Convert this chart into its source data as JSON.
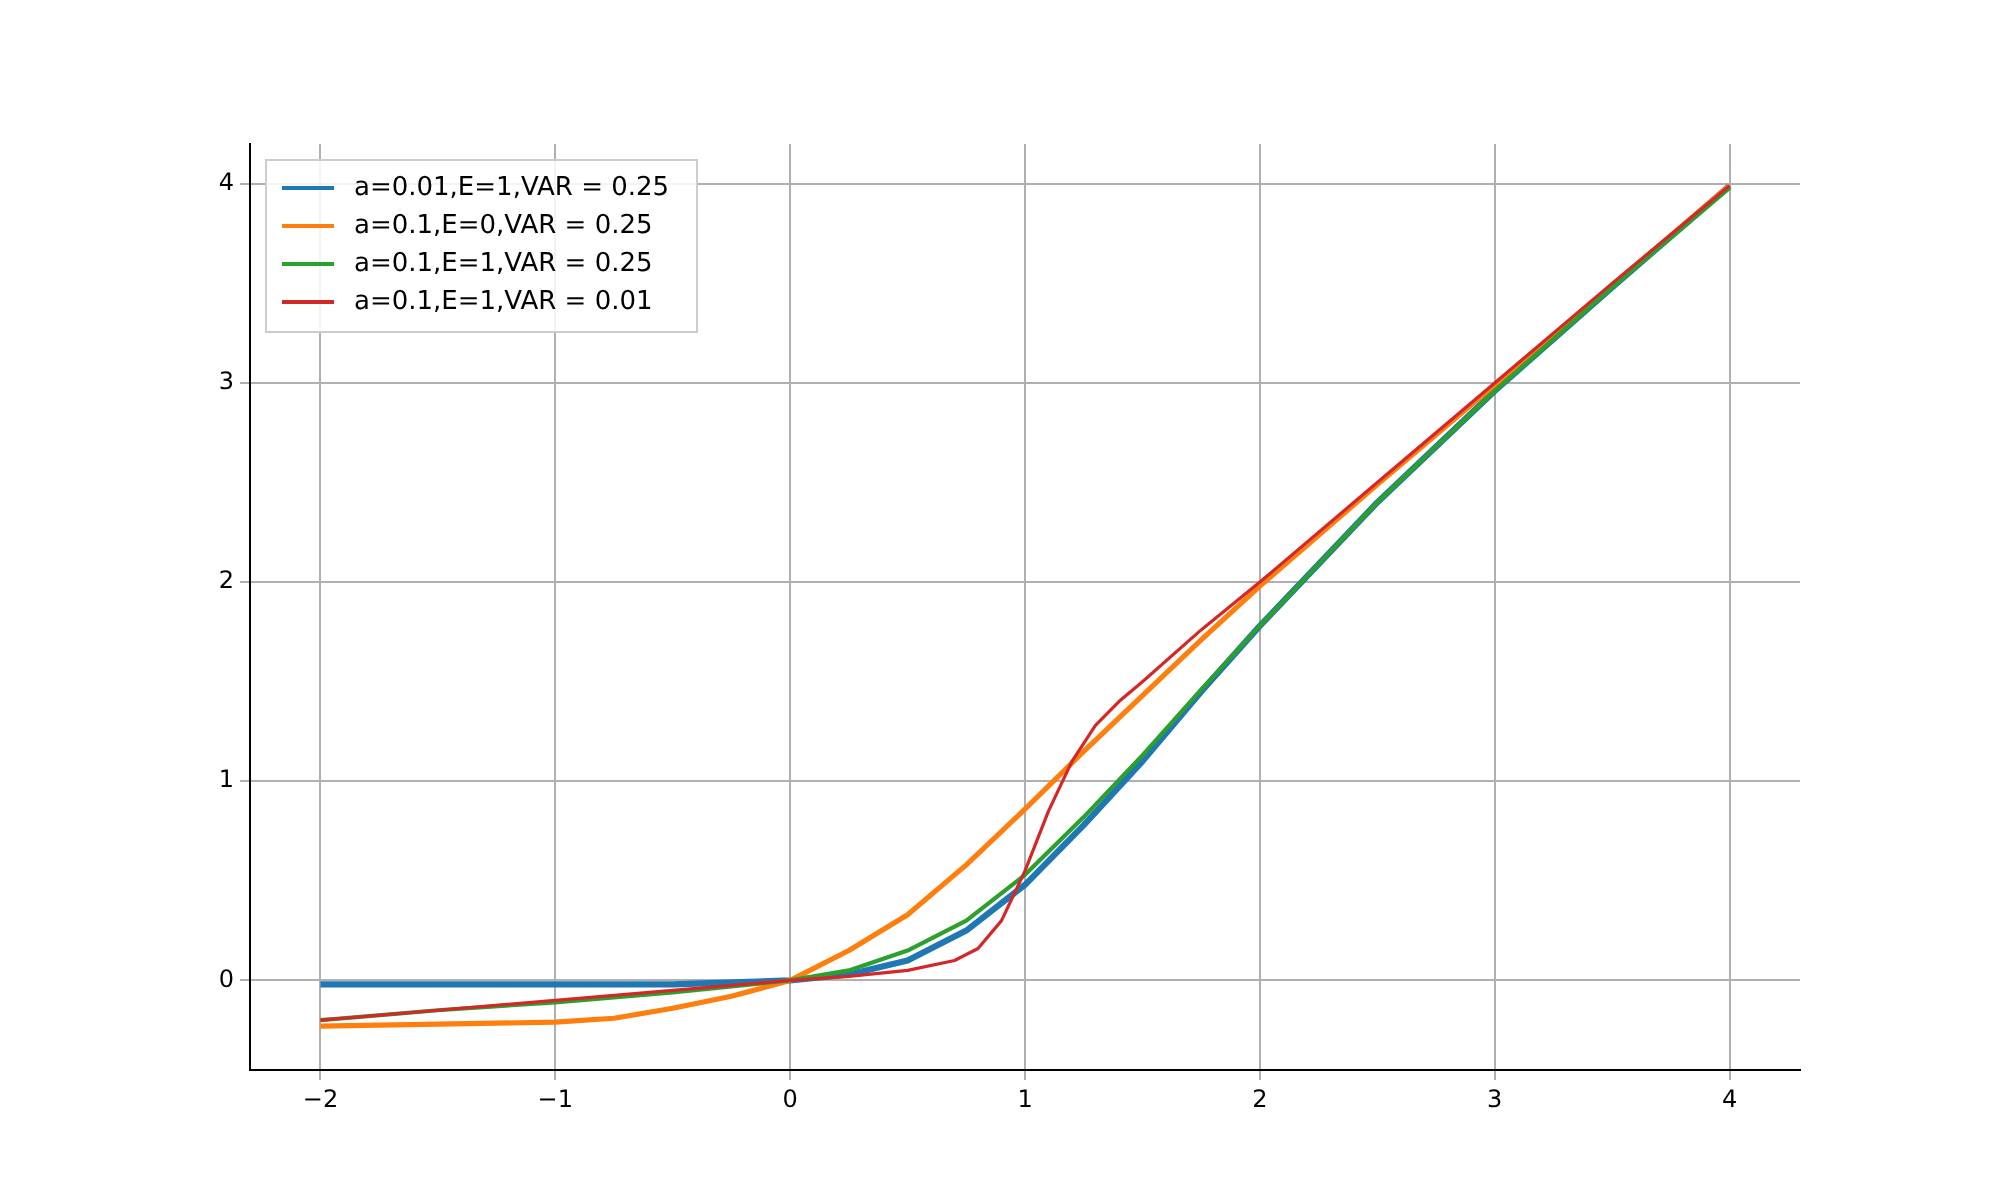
{
  "chart_data": {
    "type": "line",
    "xlim": [
      -2.3,
      4.3
    ],
    "ylim": [
      -0.45,
      4.2
    ],
    "xticks": [
      {
        "value": -2,
        "label": "−2"
      },
      {
        "value": -1,
        "label": "−1"
      },
      0,
      1,
      2,
      3,
      4
    ],
    "yticks": [
      0,
      1,
      2,
      3,
      4
    ],
    "grid": true,
    "legend": "top left",
    "marker": "none",
    "line_style": "solid",
    "series": [
      {
        "name": "a=0.01,E=1,VAR = 0.25",
        "color": "#1f77b4",
        "x": [
          -2,
          -1,
          -0.5,
          0,
          0.25,
          0.5,
          0.75,
          1,
          1.25,
          1.5,
          1.75,
          2,
          2.5,
          3,
          3.5,
          4
        ],
        "values": [
          -0.02,
          -0.02,
          -0.02,
          0,
          0.03,
          0.1,
          0.25,
          0.48,
          0.78,
          1.1,
          1.45,
          1.78,
          2.4,
          2.96,
          3.48,
          3.99
        ]
      },
      {
        "name": "a=0.1,E=0,VAR = 0.25",
        "color": "#ff7f0e",
        "x": [
          -2,
          -1.5,
          -1,
          -0.75,
          -0.5,
          -0.25,
          0,
          0.25,
          0.5,
          0.75,
          1,
          1.25,
          1.5,
          1.75,
          2,
          2.5,
          3,
          3.5,
          4
        ],
        "values": [
          -0.23,
          -0.22,
          -0.21,
          -0.19,
          -0.14,
          -0.08,
          0,
          0.15,
          0.33,
          0.58,
          0.86,
          1.15,
          1.43,
          1.71,
          1.98,
          2.49,
          2.99,
          3.49,
          3.99
        ]
      },
      {
        "name": "a=0.1,E=1,VAR = 0.25",
        "color": "#2ca02c",
        "x": [
          -2,
          -1.5,
          -1,
          -0.5,
          0,
          0.25,
          0.5,
          0.75,
          1,
          1.25,
          1.5,
          1.75,
          2,
          2.5,
          3,
          3.5,
          4
        ],
        "values": [
          -0.2,
          -0.15,
          -0.11,
          -0.06,
          0,
          0.05,
          0.15,
          0.3,
          0.53,
          0.82,
          1.13,
          1.46,
          1.78,
          2.4,
          2.96,
          3.48,
          3.98
        ]
      },
      {
        "name": "a=0.1,E=1,VAR = 0.01",
        "color": "#d62728",
        "x": [
          -2,
          -1.5,
          -1,
          -0.5,
          0,
          0.25,
          0.5,
          0.7,
          0.8,
          0.9,
          1,
          1.1,
          1.2,
          1.3,
          1.4,
          1.5,
          1.75,
          2,
          2.5,
          3,
          3.5,
          4
        ],
        "values": [
          -0.2,
          -0.15,
          -0.1,
          -0.05,
          0,
          0.02,
          0.05,
          0.1,
          0.16,
          0.3,
          0.55,
          0.85,
          1.1,
          1.28,
          1.4,
          1.5,
          1.76,
          2,
          2.5,
          3,
          3.5,
          3.99
        ]
      }
    ]
  }
}
